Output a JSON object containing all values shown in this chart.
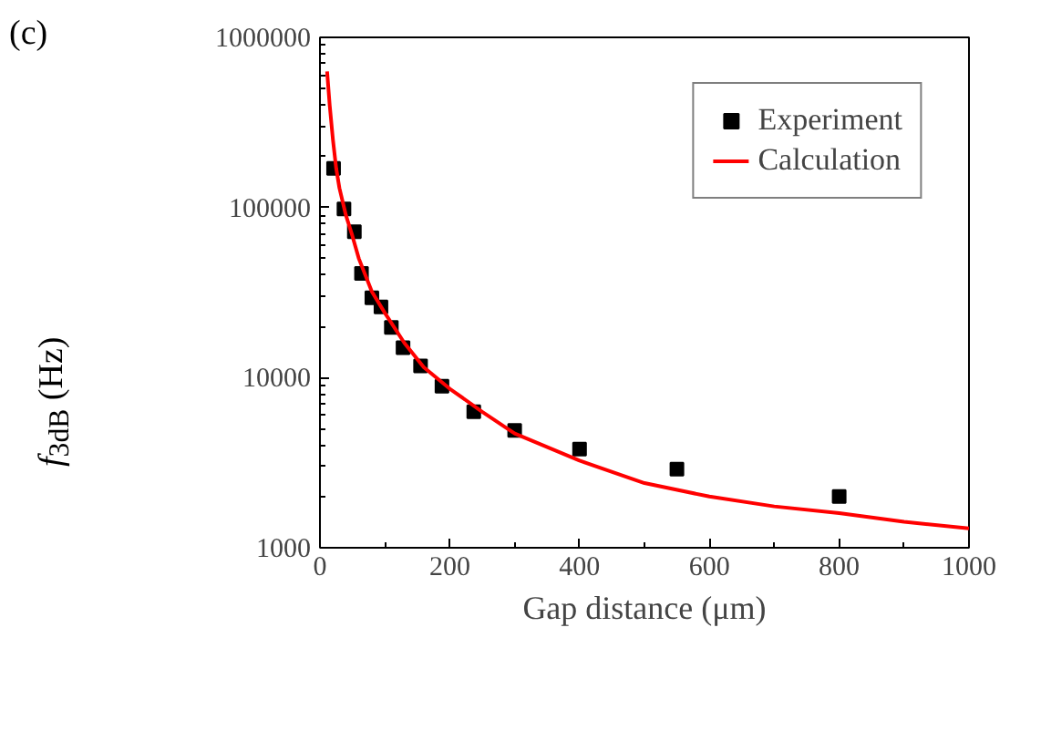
{
  "chart_data": {
    "type": "scatter",
    "xlabel": "Gap distance (μm)",
    "ylabel": "f$_{3dB}$ (Hz)",
    "annotations": [
      "(c)"
    ],
    "log": "y",
    "xlim": [
      0,
      1000
    ],
    "ylim": [
      1000,
      1000000
    ],
    "xticks": [
      0,
      200,
      400,
      600,
      800,
      1000
    ],
    "yticks": [
      1000,
      10000,
      100000,
      1000000
    ],
    "legend": "top right",
    "grid": false,
    "series": [
      {
        "name": "Experiment",
        "type": "scatter",
        "marker": "square",
        "color": "#000000",
        "x": [
          21,
          37,
          53,
          64,
          80,
          94,
          110,
          128,
          155,
          188,
          237,
          300,
          400,
          550,
          800
        ],
        "values": [
          170000,
          98000,
          72000,
          41000,
          29500,
          26000,
          19700,
          15000,
          11700,
          8900,
          6300,
          4900,
          3800,
          2900,
          2000
        ]
      },
      {
        "name": "Calculation",
        "type": "line",
        "line_style": "solid",
        "color": "#ff0000",
        "x": [
          11,
          15,
          20,
          25,
          30,
          40,
          50,
          60,
          80,
          100,
          130,
          160,
          200,
          250,
          300,
          400,
          500,
          600,
          700,
          800,
          900,
          1000
        ],
        "values": [
          630000,
          400000,
          250000,
          170000,
          130000,
          90000,
          68000,
          50000,
          32000,
          24000,
          16000,
          11500,
          8600,
          6300,
          4700,
          3250,
          2400,
          2000,
          1750,
          1600,
          1420,
          1300
        ]
      }
    ]
  }
}
